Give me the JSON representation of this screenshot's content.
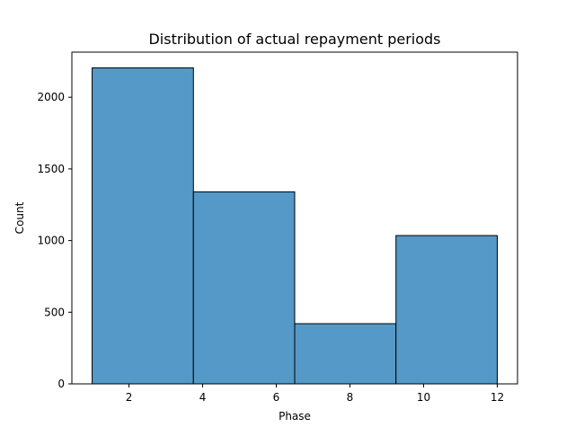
{
  "chart_data": {
    "type": "histogram",
    "title": "Distribution of actual repayment periods",
    "xlabel": "Phase",
    "ylabel": "Count",
    "bins": [
      {
        "start": 1.0,
        "end": 3.75,
        "count": 2205
      },
      {
        "start": 3.75,
        "end": 6.5,
        "count": 1340
      },
      {
        "start": 6.5,
        "end": 9.25,
        "count": 420
      },
      {
        "start": 9.25,
        "end": 12.0,
        "count": 1035
      }
    ],
    "xlim": [
      0.45,
      12.55
    ],
    "ylim": [
      0,
      2315
    ],
    "xticks": [
      2,
      4,
      6,
      8,
      10,
      12
    ],
    "yticks": [
      0,
      500,
      1000,
      1500,
      2000
    ],
    "grid": false,
    "colors": {
      "bar_fill": "#5499c7",
      "bar_edge": "#000000"
    }
  }
}
